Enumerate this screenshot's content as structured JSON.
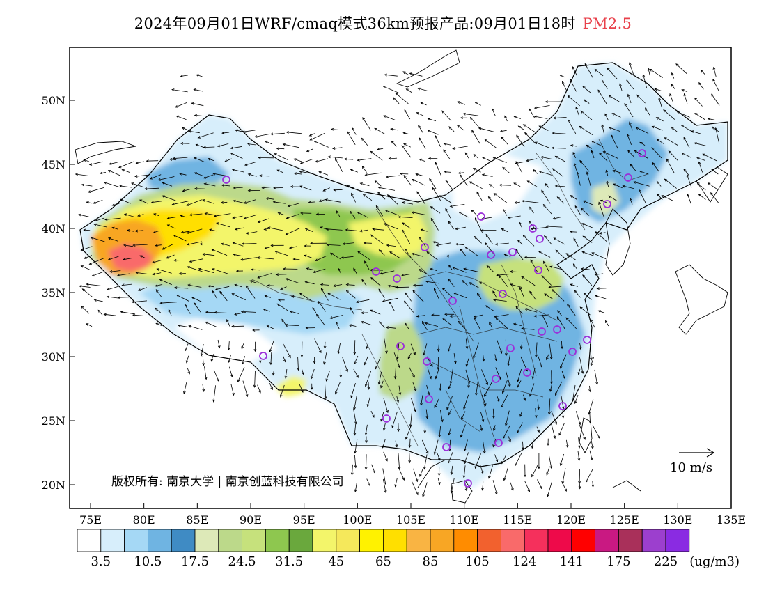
{
  "title": {
    "main": "2024年09月01日WRF/cmaq模式36km预报产品:09月01日18时",
    "species": "PM2.5",
    "species_color": "#e8414b"
  },
  "map": {
    "lon_labels": [
      "75E",
      "80E",
      "85E",
      "90E",
      "95E",
      "100E",
      "105E",
      "110E",
      "115E",
      "120E",
      "125E",
      "130E",
      "135E"
    ],
    "lat_labels": [
      "50N",
      "45N",
      "40N",
      "35N",
      "30N",
      "25N",
      "20N"
    ],
    "copyright": "版权所有: 南京大学 | 南京创蓝科技有限公司",
    "wind_ref_label": "10 m/s"
  },
  "legend": {
    "colors": [
      "#ffffff",
      "#d7eefb",
      "#a5d8f5",
      "#6fb4e2",
      "#3f8bc4",
      "#dde9b8",
      "#bcd98a",
      "#c6e17c",
      "#8ec74f",
      "#6aa83d",
      "#f3f56a",
      "#f5e85b",
      "#fff200",
      "#ffdf00",
      "#f9b443",
      "#f8a624",
      "#ff8c00",
      "#f2612e",
      "#f96a6a",
      "#f5305c",
      "#ee0a4a",
      "#ff0000",
      "#c91982",
      "#a9305a",
      "#9c3fce",
      "#8a2be2"
    ],
    "labels": [
      "3.5",
      "10.5",
      "17.5",
      "24.5",
      "31.5",
      "45",
      "65",
      "85",
      "105",
      "124",
      "141",
      "175",
      "225"
    ],
    "unit": "(ug/m3)"
  }
}
